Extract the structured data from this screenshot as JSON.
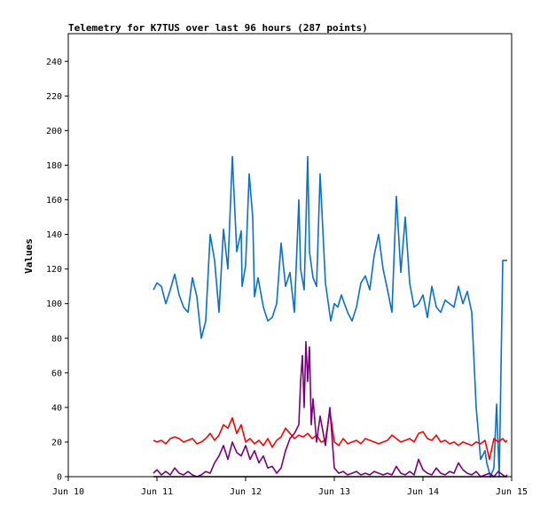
{
  "colors": {
    "series_blue": "#0a6fd0",
    "series_red": "#ff0000",
    "series_purple": "#7a0080",
    "series_black": "#000000",
    "axis": "#000000",
    "background": "#ffffff"
  },
  "chart_data": {
    "type": "line",
    "title": "Telemetry for K7TUS over last 96 hours (287 points)",
    "xlabel": "",
    "ylabel": "Values",
    "xlim": [
      0,
      5
    ],
    "ylim": [
      0,
      256
    ],
    "grid": false,
    "legend": "none",
    "x_tick_labels": [
      "Jun 10",
      "Jun 11",
      "Jun 12",
      "Jun 13",
      "Jun 14",
      "Jun 15"
    ],
    "y_ticks": [
      0,
      20,
      40,
      60,
      80,
      100,
      120,
      140,
      160,
      180,
      200,
      220,
      240
    ],
    "y_tick_labels": [
      "0",
      "20",
      "40",
      "60",
      "80",
      "100",
      "120",
      "140",
      "160",
      "180",
      "200",
      "220",
      "240"
    ],
    "x_units": "days since Jun 10",
    "series": [
      {
        "color": "#0a6fd0",
        "x": [
          0.96,
          1.0,
          1.05,
          1.1,
          1.15,
          1.2,
          1.25,
          1.3,
          1.35,
          1.4,
          1.45,
          1.5,
          1.55,
          1.6,
          1.65,
          1.7,
          1.75,
          1.8,
          1.85,
          1.9,
          1.95,
          1.96,
          2.0,
          2.04,
          2.08,
          2.1,
          2.14,
          2.2,
          2.25,
          2.3,
          2.35,
          2.4,
          2.45,
          2.5,
          2.55,
          2.6,
          2.62,
          2.66,
          2.7,
          2.72,
          2.76,
          2.8,
          2.84,
          2.9,
          2.96,
          3.0,
          3.04,
          3.08,
          3.1,
          3.15,
          3.2,
          3.25,
          3.3,
          3.35,
          3.4,
          3.45,
          3.5,
          3.55,
          3.6,
          3.65,
          3.7,
          3.75,
          3.8,
          3.85,
          3.9,
          3.95,
          4.0,
          4.05,
          4.1,
          4.15,
          4.2,
          4.25,
          4.3,
          4.35,
          4.4,
          4.45,
          4.5,
          4.55,
          4.6,
          4.65,
          4.7,
          4.72,
          4.76,
          4.8,
          4.83,
          4.86,
          4.9,
          4.93,
          4.95
        ],
        "values": [
          108,
          112,
          110,
          100,
          108,
          117,
          105,
          98,
          95,
          115,
          104,
          80,
          90,
          140,
          125,
          95,
          143,
          120,
          185,
          130,
          142,
          110,
          122,
          175,
          150,
          104,
          115,
          98,
          90,
          92,
          100,
          135,
          110,
          118,
          95,
          160,
          120,
          108,
          185,
          130,
          115,
          110,
          175,
          112,
          90,
          100,
          98,
          105,
          102,
          95,
          90,
          98,
          112,
          116,
          108,
          128,
          140,
          120,
          108,
          95,
          162,
          118,
          150,
          112,
          98,
          100,
          105,
          92,
          110,
          98,
          95,
          102,
          100,
          98,
          110,
          100,
          107,
          95,
          40,
          10,
          15,
          8,
          0,
          5,
          42,
          0,
          125,
          125,
          125
        ]
      },
      {
        "color": "#ff0000",
        "x": [
          0.96,
          1.0,
          1.05,
          1.1,
          1.15,
          1.2,
          1.25,
          1.3,
          1.35,
          1.4,
          1.45,
          1.5,
          1.55,
          1.6,
          1.65,
          1.7,
          1.75,
          1.8,
          1.85,
          1.9,
          1.95,
          2.0,
          2.05,
          2.1,
          2.15,
          2.2,
          2.25,
          2.3,
          2.35,
          2.4,
          2.45,
          2.5,
          2.55,
          2.6,
          2.65,
          2.7,
          2.75,
          2.8,
          2.85,
          2.9,
          2.95,
          3.0,
          3.05,
          3.1,
          3.15,
          3.2,
          3.25,
          3.3,
          3.35,
          3.4,
          3.45,
          3.5,
          3.55,
          3.6,
          3.65,
          3.7,
          3.75,
          3.8,
          3.85,
          3.9,
          3.95,
          4.0,
          4.05,
          4.1,
          4.15,
          4.2,
          4.25,
          4.3,
          4.35,
          4.4,
          4.45,
          4.5,
          4.55,
          4.6,
          4.65,
          4.7,
          4.75,
          4.8,
          4.85,
          4.9,
          4.93,
          4.95
        ],
        "values": [
          21,
          20,
          21,
          19,
          22,
          23,
          22,
          20,
          21,
          22,
          19,
          20,
          22,
          25,
          21,
          24,
          30,
          28,
          34,
          25,
          30,
          20,
          22,
          19,
          21,
          18,
          22,
          17,
          21,
          23,
          28,
          25,
          22,
          24,
          23,
          25,
          22,
          24,
          20,
          21,
          38,
          20,
          18,
          22,
          19,
          20,
          21,
          19,
          22,
          21,
          20,
          19,
          20,
          21,
          24,
          22,
          20,
          21,
          22,
          20,
          25,
          26,
          22,
          21,
          24,
          20,
          21,
          19,
          20,
          18,
          20,
          19,
          18,
          20,
          19,
          21,
          10,
          22,
          20,
          22,
          20,
          21
        ]
      },
      {
        "color": "#7a0080",
        "x": [
          0.96,
          1.0,
          1.05,
          1.1,
          1.15,
          1.2,
          1.25,
          1.3,
          1.35,
          1.4,
          1.45,
          1.5,
          1.55,
          1.6,
          1.65,
          1.7,
          1.75,
          1.8,
          1.85,
          1.9,
          1.95,
          2.0,
          2.05,
          2.1,
          2.15,
          2.2,
          2.25,
          2.3,
          2.35,
          2.4,
          2.45,
          2.5,
          2.55,
          2.6,
          2.62,
          2.64,
          2.66,
          2.68,
          2.7,
          2.72,
          2.74,
          2.76,
          2.8,
          2.84,
          2.9,
          2.95,
          3.0,
          3.05,
          3.1,
          3.15,
          3.2,
          3.25,
          3.3,
          3.35,
          3.4,
          3.45,
          3.5,
          3.55,
          3.6,
          3.65,
          3.7,
          3.75,
          3.8,
          3.85,
          3.9,
          3.95,
          4.0,
          4.05,
          4.1,
          4.15,
          4.2,
          4.25,
          4.3,
          4.35,
          4.4,
          4.45,
          4.5,
          4.55,
          4.6,
          4.65,
          4.7,
          4.75,
          4.8,
          4.85,
          4.9,
          4.93,
          4.95
        ],
        "values": [
          2,
          4,
          1,
          3,
          1,
          5,
          2,
          1,
          3,
          1,
          0,
          1,
          3,
          2,
          8,
          12,
          18,
          10,
          20,
          14,
          12,
          18,
          10,
          15,
          8,
          12,
          5,
          6,
          2,
          5,
          15,
          22,
          25,
          30,
          55,
          70,
          40,
          78,
          55,
          75,
          30,
          45,
          20,
          35,
          18,
          40,
          5,
          2,
          3,
          1,
          2,
          3,
          1,
          2,
          1,
          3,
          2,
          1,
          2,
          1,
          6,
          2,
          1,
          3,
          1,
          10,
          4,
          2,
          1,
          5,
          2,
          1,
          3,
          2,
          8,
          4,
          2,
          1,
          3,
          0,
          1,
          2,
          0,
          3,
          1,
          0,
          1
        ]
      },
      {
        "color": "#000000",
        "x": [
          0.96,
          4.95
        ],
        "values": [
          0,
          0
        ]
      }
    ]
  }
}
